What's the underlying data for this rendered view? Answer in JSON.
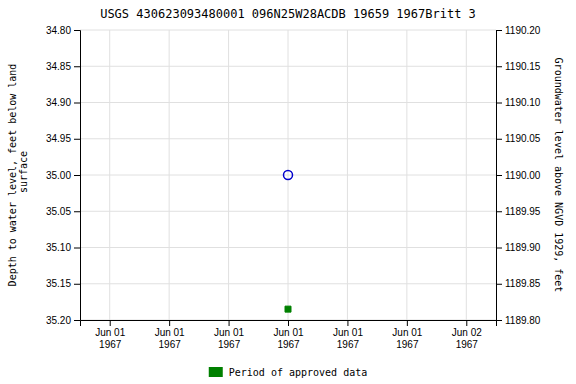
{
  "chart_data": {
    "type": "scatter",
    "title": "USGS 430623093480001 096N25W28ACDB 19659 1967Britt 3",
    "ylabel": "Depth to water level, feet below land\n surface",
    "y2label": "Groundwater level above NGVD 1929, feet",
    "categories": [
      "Jun 01\n1967",
      "Jun 01\n1967",
      "Jun 01\n1967",
      "Jun 01\n1967",
      "Jun 01\n1967",
      "Jun 01\n1967",
      "Jun 02\n1967"
    ],
    "ylim": [
      35.2,
      34.8
    ],
    "yticks": [
      {
        "value": 34.8,
        "label": "34.80"
      },
      {
        "value": 34.85,
        "label": "34.85"
      },
      {
        "value": 34.9,
        "label": "34.90"
      },
      {
        "value": 34.95,
        "label": "34.95"
      },
      {
        "value": 35.0,
        "label": "35.00"
      },
      {
        "value": 35.05,
        "label": "35.05"
      },
      {
        "value": 35.1,
        "label": "35.10"
      },
      {
        "value": 35.15,
        "label": "35.15"
      },
      {
        "value": 35.2,
        "label": "35.20"
      }
    ],
    "y2lim": [
      1189.8,
      1190.2
    ],
    "y2ticks": [
      {
        "value": 1190.2,
        "label": "1190.20"
      },
      {
        "value": 1190.15,
        "label": "1190.15"
      },
      {
        "value": 1190.1,
        "label": "1190.10"
      },
      {
        "value": 1190.05,
        "label": "1190.05"
      },
      {
        "value": 1190.0,
        "label": "1190.00"
      },
      {
        "value": 1189.95,
        "label": "1189.95"
      },
      {
        "value": 1189.9,
        "label": "1189.90"
      },
      {
        "value": 1189.85,
        "label": "1189.85"
      },
      {
        "value": 1189.8,
        "label": "1189.80"
      }
    ],
    "grid": true,
    "legend": "bottom",
    "series": [
      {
        "color": "#0000cc",
        "marker": "circle",
        "values": [
          null,
          null,
          null,
          35.0,
          null,
          null,
          null
        ]
      },
      {
        "name": "Period of approved data",
        "color": "#008000",
        "marker": "square",
        "values": [
          null,
          null,
          null,
          35.185,
          null,
          null,
          null
        ]
      }
    ]
  }
}
